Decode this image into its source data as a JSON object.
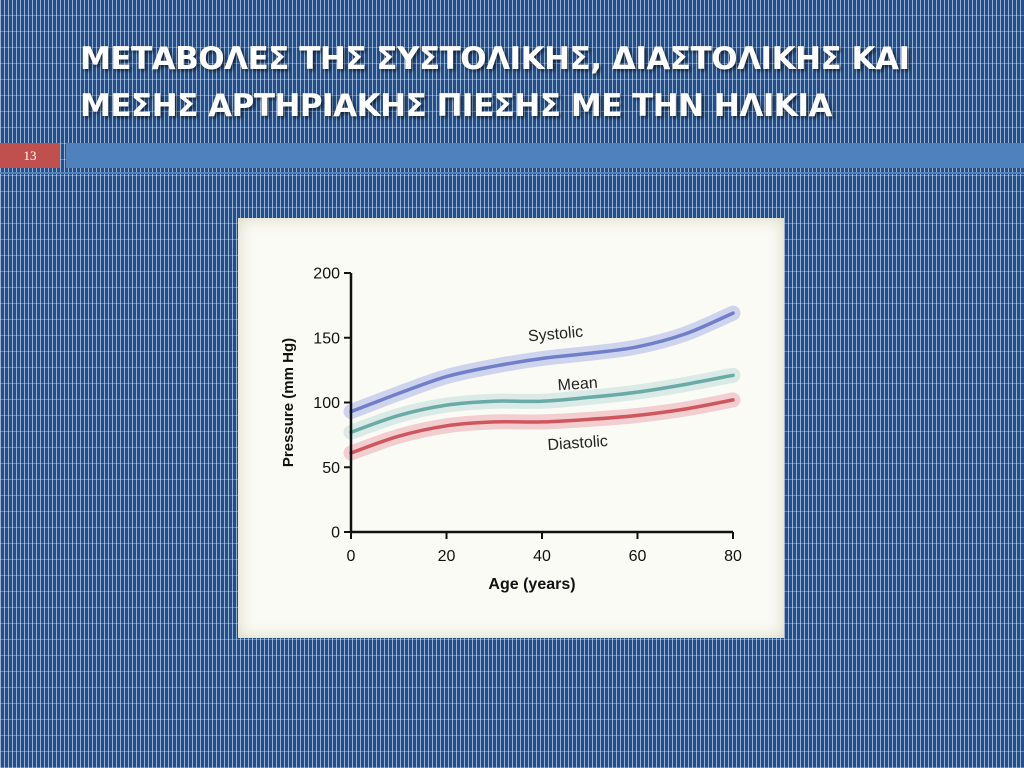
{
  "slide": {
    "title": "ΜΕΤΑΒΟΛΕΣ ΤΗΣ ΣΥΣΤΟΛΙΚΗΣ, ΔΙΑΣΤΟΛΙΚΗΣ ΚΑΙ ΜΕΣΗΣ ΑΡΤΗΡΙΑΚΗΣ ΠΙΕΣΗΣ ΜΕ ΤΗΝ ΗΛΙΚΙΑ",
    "number": "13"
  },
  "chart_data": {
    "type": "line",
    "title": "",
    "xlabel": "Age (years)",
    "ylabel": "Pressure (mm Hg)",
    "xlim": [
      0,
      80
    ],
    "ylim": [
      0,
      200
    ],
    "xticks": [
      0,
      20,
      40,
      60,
      80
    ],
    "yticks": [
      0,
      50,
      100,
      150,
      200
    ],
    "grid": false,
    "series": [
      {
        "name": "Systolic",
        "color": "#6f7fc9",
        "band_color": "#c7cdec",
        "x": [
          0,
          10,
          20,
          30,
          40,
          50,
          60,
          70,
          80
        ],
        "values": [
          93,
          107,
          120,
          128,
          134,
          138,
          143,
          153,
          169
        ]
      },
      {
        "name": "Mean",
        "color": "#6aaaa7",
        "band_color": "#d2e6e4",
        "x": [
          0,
          10,
          20,
          30,
          40,
          50,
          60,
          70,
          80
        ],
        "values": [
          77,
          90,
          98,
          101,
          101,
          104,
          108,
          114,
          121
        ]
      },
      {
        "name": "Diastolic",
        "color": "#d0565e",
        "band_color": "#f0c6c9",
        "x": [
          0,
          10,
          20,
          30,
          40,
          50,
          60,
          70,
          80
        ],
        "values": [
          61,
          74,
          82,
          85,
          85,
          87,
          90,
          95,
          102
        ]
      }
    ]
  }
}
